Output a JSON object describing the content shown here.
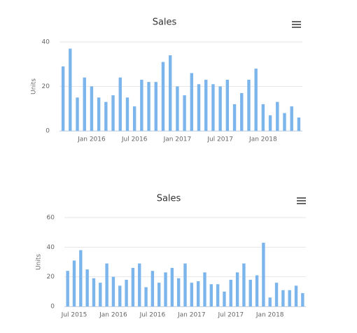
{
  "chart_data": [
    {
      "type": "bar",
      "title": "Sales",
      "y_label": "Units",
      "color": "#7cb5ec",
      "categories": [
        null,
        null,
        null,
        null,
        "Jan 2016",
        null,
        null,
        null,
        null,
        null,
        "Jul 2016",
        null,
        null,
        null,
        null,
        null,
        "Jan 2017",
        null,
        null,
        null,
        null,
        null,
        "Jul 2017",
        null,
        null,
        null,
        null,
        null,
        "Jan 2018",
        null,
        null,
        null,
        null,
        null
      ],
      "values": [
        29,
        37,
        15,
        24,
        20,
        15,
        13,
        16,
        24,
        15,
        11,
        23,
        22,
        22,
        31,
        34,
        20,
        16,
        26,
        21,
        23,
        21,
        20,
        23,
        12,
        17,
        23,
        28,
        12,
        7,
        13,
        8,
        11,
        6
      ],
      "ylim": [
        0,
        40
      ],
      "yticks": [
        0,
        20,
        40
      ],
      "grid": true
    },
    {
      "type": "bar",
      "title": "Sales",
      "y_label": "Units",
      "color": "#7cb5ec",
      "categories": [
        null,
        "Jul 2015",
        null,
        null,
        null,
        null,
        null,
        "Jan 2016",
        null,
        null,
        null,
        null,
        null,
        "Jul 2016",
        null,
        null,
        null,
        null,
        null,
        "Jan 2017",
        null,
        null,
        null,
        null,
        null,
        "Jul 2017",
        null,
        null,
        null,
        null,
        null,
        "Jan 2018",
        null,
        null,
        null,
        null,
        null
      ],
      "values": [
        24,
        31,
        38,
        25,
        19,
        16,
        29,
        20,
        14,
        18,
        26,
        29,
        13,
        24,
        16,
        23,
        26,
        19,
        29,
        16,
        17,
        23,
        15,
        15,
        10,
        18,
        23,
        29,
        18,
        21,
        43,
        6,
        16,
        11,
        11,
        14,
        9
      ],
      "ylim": [
        0,
        60
      ],
      "yticks": [
        0,
        20,
        40,
        60
      ],
      "grid": true
    }
  ]
}
